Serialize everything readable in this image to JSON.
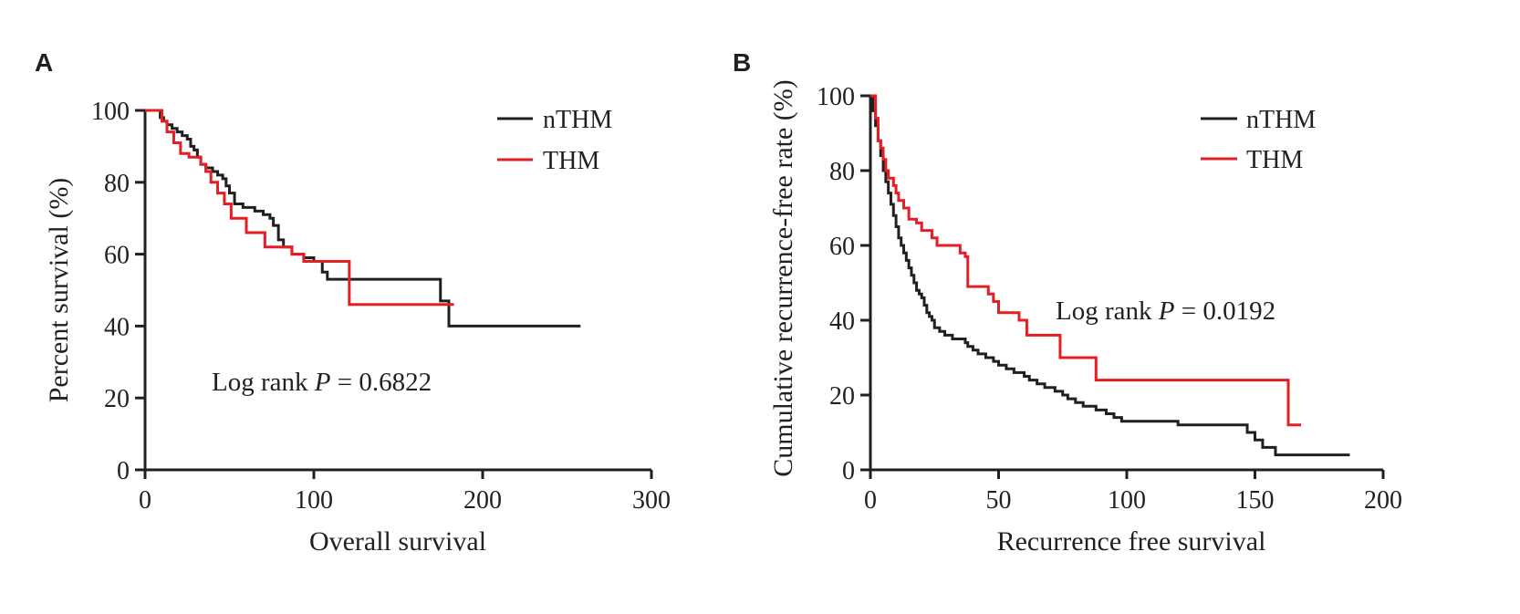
{
  "chart_data": [
    {
      "panel": "A",
      "type": "line",
      "subtype": "kaplan-meier-step",
      "title": "",
      "xlabel": "Overall survival",
      "ylabel": "Percent survival (%)",
      "xlim": [
        0,
        300
      ],
      "ylim": [
        0,
        100
      ],
      "xticks": [
        "0",
        "100",
        "200",
        "300"
      ],
      "yticks": [
        "0",
        "20",
        "40",
        "60",
        "80",
        "100"
      ],
      "grid": false,
      "legend": {
        "position": "top-right",
        "entries": [
          "nTHM",
          "THM"
        ]
      },
      "annotation": {
        "prefix": "Log rank ",
        "p_symbol": "P",
        "suffix": " = 0.6822"
      },
      "series": [
        {
          "name": "nTHM",
          "color": "#231f20",
          "points": [
            [
              0,
              100
            ],
            [
              8,
              100
            ],
            [
              9,
              98
            ],
            [
              11,
              97
            ],
            [
              13,
              96
            ],
            [
              16,
              95
            ],
            [
              19,
              94
            ],
            [
              22,
              93
            ],
            [
              25,
              92
            ],
            [
              27,
              90
            ],
            [
              29,
              89
            ],
            [
              31,
              87
            ],
            [
              33,
              85
            ],
            [
              36,
              84
            ],
            [
              40,
              83
            ],
            [
              43,
              82
            ],
            [
              46,
              81
            ],
            [
              48,
              79
            ],
            [
              50,
              77
            ],
            [
              53,
              74
            ],
            [
              58,
              73
            ],
            [
              65,
              72
            ],
            [
              70,
              71
            ],
            [
              74,
              70
            ],
            [
              76,
              68
            ],
            [
              79,
              64
            ],
            [
              82,
              62
            ],
            [
              87,
              60
            ],
            [
              94,
              59
            ],
            [
              100,
              58
            ],
            [
              105,
              55
            ],
            [
              108,
              53
            ],
            [
              150,
              53
            ],
            [
              173,
              53
            ],
            [
              175,
              47
            ],
            [
              179,
              47
            ],
            [
              180,
              40
            ],
            [
              258,
              40
            ]
          ]
        },
        {
          "name": "THM",
          "color": "#e31e24",
          "points": [
            [
              0,
              100
            ],
            [
              7,
              100
            ],
            [
              10,
              97
            ],
            [
              13,
              94
            ],
            [
              17,
              91
            ],
            [
              21,
              88
            ],
            [
              26,
              87
            ],
            [
              33,
              85
            ],
            [
              36,
              83
            ],
            [
              39,
              80
            ],
            [
              43,
              77
            ],
            [
              47,
              74
            ],
            [
              51,
              70
            ],
            [
              60,
              66
            ],
            [
              71,
              62
            ],
            [
              82,
              62
            ],
            [
              87,
              60
            ],
            [
              94,
              58
            ],
            [
              101,
              58
            ],
            [
              121,
              58
            ],
            [
              121,
              46
            ],
            [
              183,
              46
            ]
          ]
        }
      ]
    },
    {
      "panel": "B",
      "type": "line",
      "subtype": "kaplan-meier-step",
      "title": "",
      "xlabel": "Recurrence free survival",
      "ylabel": "Cumulative recurrence-free rate (%)",
      "xlim": [
        0,
        200
      ],
      "ylim": [
        0,
        100
      ],
      "xticks": [
        "0",
        "50",
        "100",
        "150",
        "200"
      ],
      "yticks": [
        "0",
        "20",
        "40",
        "60",
        "80",
        "100"
      ],
      "grid": false,
      "legend": {
        "position": "top-right",
        "entries": [
          "nTHM",
          "THM"
        ]
      },
      "annotation": {
        "prefix": "Log rank ",
        "p_symbol": "P",
        "suffix": " = 0.0192"
      },
      "series": [
        {
          "name": "nTHM",
          "color": "#231f20",
          "points": [
            [
              0,
              100
            ],
            [
              1,
              96
            ],
            [
              2,
              92
            ],
            [
              3,
              88
            ],
            [
              4,
              84
            ],
            [
              5,
              80
            ],
            [
              6,
              77
            ],
            [
              7,
              74
            ],
            [
              8,
              71
            ],
            [
              9,
              68
            ],
            [
              10,
              65
            ],
            [
              11,
              62
            ],
            [
              12,
              60
            ],
            [
              13,
              58
            ],
            [
              14,
              56
            ],
            [
              15,
              54
            ],
            [
              16,
              52
            ],
            [
              17,
              50
            ],
            [
              18,
              48
            ],
            [
              19,
              47
            ],
            [
              20,
              46
            ],
            [
              21,
              44
            ],
            [
              22,
              42
            ],
            [
              23,
              41
            ],
            [
              24,
              40
            ],
            [
              25,
              38
            ],
            [
              27,
              37
            ],
            [
              29,
              36
            ],
            [
              32,
              35
            ],
            [
              35,
              35
            ],
            [
              37,
              34
            ],
            [
              38,
              33
            ],
            [
              40,
              32
            ],
            [
              42,
              31
            ],
            [
              45,
              30
            ],
            [
              48,
              29
            ],
            [
              50,
              28
            ],
            [
              53,
              27
            ],
            [
              56,
              26
            ],
            [
              60,
              25
            ],
            [
              62,
              24
            ],
            [
              65,
              23
            ],
            [
              68,
              22
            ],
            [
              72,
              21
            ],
            [
              75,
              20
            ],
            [
              77,
              19
            ],
            [
              80,
              18
            ],
            [
              83,
              17
            ],
            [
              88,
              16
            ],
            [
              92,
              15
            ],
            [
              95,
              14
            ],
            [
              98,
              13
            ],
            [
              110,
              13
            ],
            [
              120,
              12
            ],
            [
              130,
              12
            ],
            [
              145,
              12
            ],
            [
              147,
              10
            ],
            [
              150,
              8
            ],
            [
              153,
              6
            ],
            [
              158,
              4
            ],
            [
              187,
              4
            ]
          ]
        },
        {
          "name": "THM",
          "color": "#e31e24",
          "points": [
            [
              0,
              100
            ],
            [
              2,
              94
            ],
            [
              3,
              88
            ],
            [
              4,
              86
            ],
            [
              5,
              83
            ],
            [
              6,
              80
            ],
            [
              7,
              78
            ],
            [
              9,
              76
            ],
            [
              10,
              74
            ],
            [
              11,
              72
            ],
            [
              13,
              70
            ],
            [
              15,
              67
            ],
            [
              18,
              66
            ],
            [
              20,
              64
            ],
            [
              24,
              62
            ],
            [
              26,
              60
            ],
            [
              32,
              60
            ],
            [
              35,
              58
            ],
            [
              37,
              57
            ],
            [
              38,
              55
            ],
            [
              38,
              49
            ],
            [
              43,
              49
            ],
            [
              46,
              47
            ],
            [
              48,
              45
            ],
            [
              50,
              42
            ],
            [
              56,
              42
            ],
            [
              58,
              40
            ],
            [
              61,
              36
            ],
            [
              74,
              36
            ],
            [
              74,
              30
            ],
            [
              88,
              30
            ],
            [
              88,
              24
            ],
            [
              163,
              24
            ],
            [
              163,
              12
            ],
            [
              168,
              12
            ]
          ]
        }
      ]
    }
  ]
}
